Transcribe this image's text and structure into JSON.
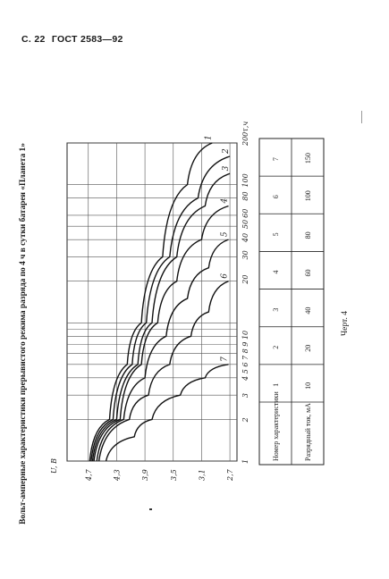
{
  "header": {
    "page": "С. 22",
    "doc": "ГОСТ 2583—92"
  },
  "title": "Вольт-амперные характеристики прерывистого режима разряда по 4 ч в сутки батареи «Планета 1»",
  "chart_data": {
    "type": "line",
    "ylabel": "U, В",
    "xlabel": "τ, ч",
    "y_ticks": [
      "4,7",
      "4,3",
      "3,9",
      "3,5",
      "3,1",
      "2,7"
    ],
    "x_ticks": [
      "1",
      "2",
      "3",
      "4",
      "5",
      "6",
      "7",
      "8",
      "9",
      "10",
      "20",
      "30",
      "40",
      "50",
      "60",
      "80",
      "100",
      "200"
    ],
    "x_tick_labels": [
      "1",
      "2",
      "3",
      "4 5 6 7 8 9 10",
      "20",
      "30",
      "40",
      "50",
      "60",
      "80",
      "100",
      "200τ,ч"
    ],
    "series": [
      {
        "name": "1",
        "x": [
          1,
          2,
          5,
          10,
          30,
          100,
          200
        ],
        "y": [
          4.68,
          4.4,
          4.15,
          3.95,
          3.65,
          3.3,
          2.95
        ]
      },
      {
        "name": "2",
        "x": [
          1,
          2,
          5,
          10,
          30,
          80,
          160
        ],
        "y": [
          4.66,
          4.35,
          4.08,
          3.88,
          3.55,
          3.15,
          2.7
        ]
      },
      {
        "name": "3",
        "x": [
          1,
          2,
          5,
          10,
          30,
          70,
          120
        ],
        "y": [
          4.64,
          4.3,
          4.0,
          3.8,
          3.45,
          3.05,
          2.7
        ]
      },
      {
        "name": "4",
        "x": [
          1,
          2,
          5,
          10,
          20,
          40,
          70
        ],
        "y": [
          4.62,
          4.25,
          3.95,
          3.72,
          3.45,
          3.1,
          2.72
        ]
      },
      {
        "name": "5",
        "x": [
          1,
          2,
          4,
          8,
          15,
          25,
          40
        ],
        "y": [
          4.58,
          4.2,
          3.9,
          3.6,
          3.3,
          3.0,
          2.72
        ]
      },
      {
        "name": "6",
        "x": [
          1,
          2,
          3,
          5,
          8,
          12,
          20
        ],
        "y": [
          4.55,
          4.12,
          3.85,
          3.55,
          3.25,
          3.0,
          2.72
        ]
      },
      {
        "name": "7",
        "x": [
          1,
          1.5,
          2,
          3,
          4,
          5
        ],
        "y": [
          4.45,
          4.05,
          3.8,
          3.4,
          3.05,
          2.72
        ]
      }
    ],
    "table": {
      "headers": [
        "Номер характеристики",
        "Разрядный ток, мА"
      ],
      "rows": [
        [
          "1",
          "10"
        ],
        [
          "2",
          "20"
        ],
        [
          "3",
          "40"
        ],
        [
          "4",
          "60"
        ],
        [
          "5",
          "80"
        ],
        [
          "6",
          "100"
        ],
        [
          "7",
          "150"
        ]
      ]
    }
  },
  "caption": "Черт. 4"
}
